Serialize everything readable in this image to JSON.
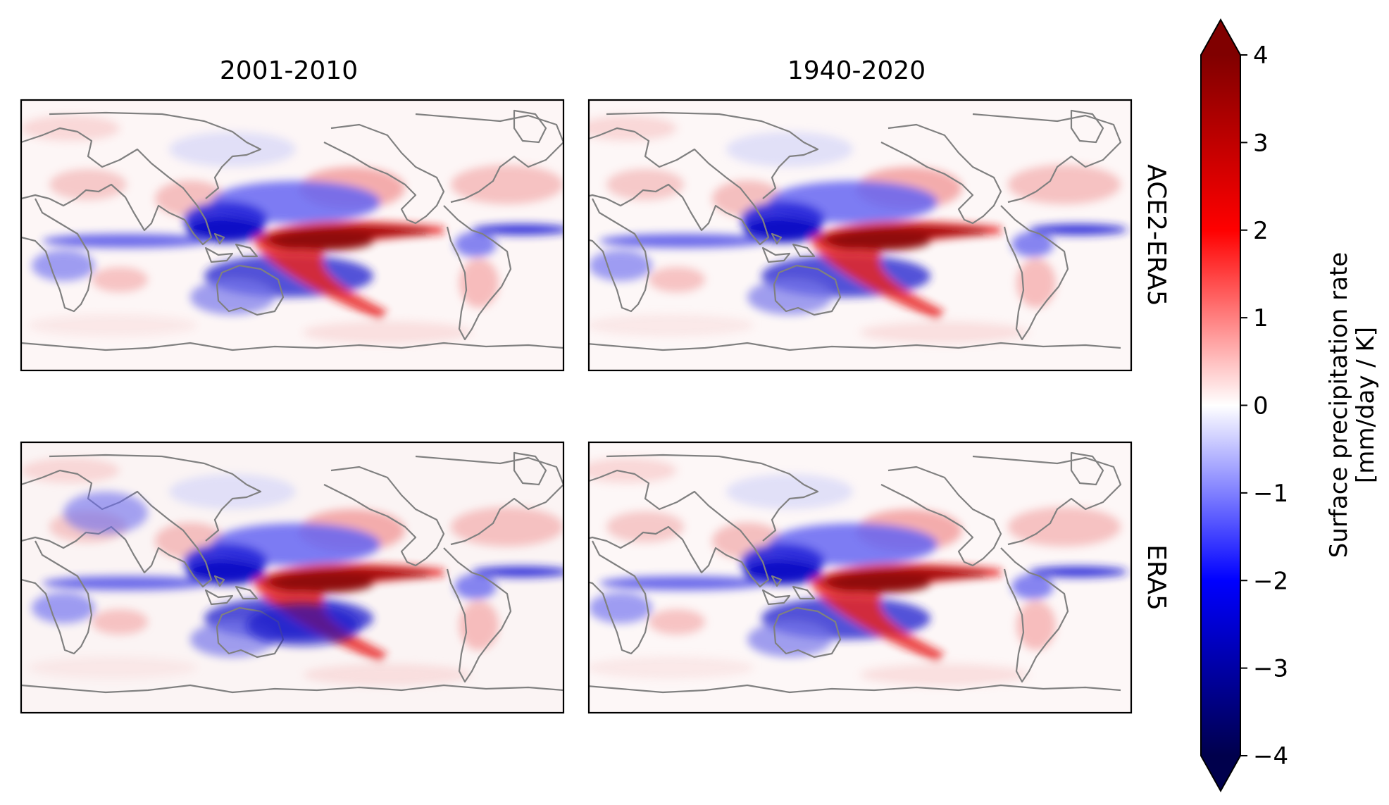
{
  "chart_data": {
    "type": "heatmap",
    "subtype": "global map panels",
    "columns": [
      "2001-2010",
      "1940-2020"
    ],
    "rows": [
      "ACE2-ERA5",
      "ERA5"
    ],
    "colormap": "seismic",
    "colorbar": {
      "label_line1": "Surface precipitation rate",
      "label_line2": "[mm/day / K]",
      "vmin": -4,
      "vmax": 4,
      "extend": "both",
      "ticks": [
        4,
        3,
        2,
        1,
        0,
        -1,
        -2,
        -3,
        -4
      ],
      "tick_labels": [
        "4",
        "3",
        "2",
        "1",
        "0",
        "−1",
        "−2",
        "−3",
        "−4"
      ],
      "colors": {
        "low": "#00004c",
        "mid_low": "#0000ff",
        "zero": "#ffffff",
        "mid_high": "#ff0000",
        "high": "#800000"
      }
    },
    "features": {
      "coastline_color": "#808080",
      "dominant_pattern": "positive (red) anomaly tongue over central/eastern equatorial Pacific, negative (blue) over western Pacific/Maritime Continent and equatorial Atlantic"
    },
    "panels": [
      {
        "row": "ACE2-ERA5",
        "col": "2001-2010"
      },
      {
        "row": "ACE2-ERA5",
        "col": "1940-2020"
      },
      {
        "row": "ERA5",
        "col": "2001-2010"
      },
      {
        "row": "ERA5",
        "col": "1940-2020"
      }
    ]
  }
}
